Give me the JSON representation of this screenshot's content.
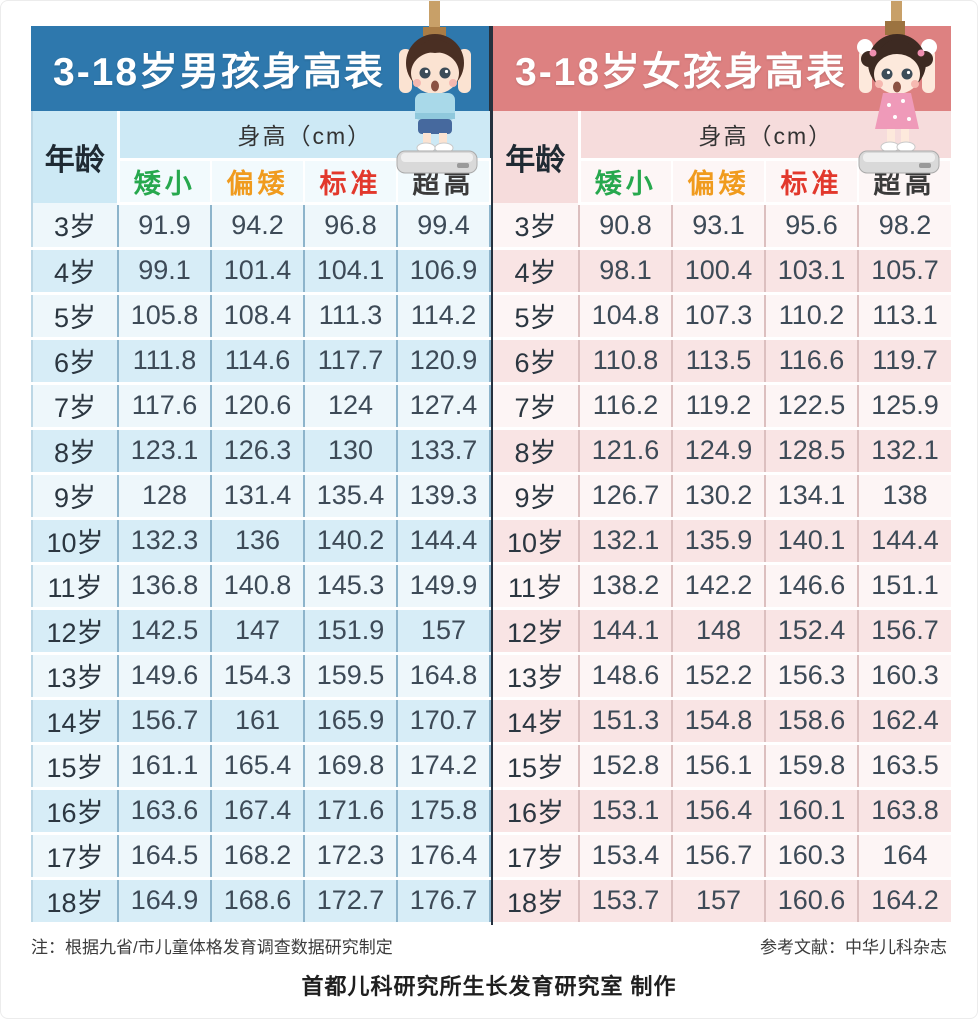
{
  "poster": {
    "note_left": "注：根据九省/市儿童体格发育调查数据研究制定",
    "note_right": "参考文献：中华儿科杂志",
    "credit": "首都儿科研究所生长发育研究室 制作"
  },
  "colors": {
    "boys_header_bg": "#2e78ad",
    "boys_row_light": "#eef7fb",
    "boys_row_tint": "#d7edf7",
    "girls_header_bg": "#dd8181",
    "girls_row_light": "#fdf5f5",
    "girls_row_tint": "#f9e4e4",
    "divider_dark": "#25313e",
    "col_short_green": "#27a84e",
    "col_below_orange": "#f09b1e",
    "col_standard_red": "#e2382c",
    "col_tall_dark": "#3a3a3a"
  },
  "chart_data": [
    {
      "type": "table",
      "title": "3-18岁男孩身高表",
      "age_header": "年龄",
      "group_header": "身高（cm）",
      "columns": [
        "矮小",
        "偏矮",
        "标准",
        "超高"
      ],
      "column_colors": [
        "#27a84e",
        "#f09b1e",
        "#e2382c",
        "#3a3a3a"
      ],
      "rows": [
        {
          "age": "3岁",
          "values": [
            "91.9",
            "94.2",
            "96.8",
            "99.4"
          ]
        },
        {
          "age": "4岁",
          "values": [
            "99.1",
            "101.4",
            "104.1",
            "106.9"
          ]
        },
        {
          "age": "5岁",
          "values": [
            "105.8",
            "108.4",
            "111.3",
            "114.2"
          ]
        },
        {
          "age": "6岁",
          "values": [
            "111.8",
            "114.6",
            "117.7",
            "120.9"
          ]
        },
        {
          "age": "7岁",
          "values": [
            "117.6",
            "120.6",
            "124",
            "127.4"
          ]
        },
        {
          "age": "8岁",
          "values": [
            "123.1",
            "126.3",
            "130",
            "133.7"
          ]
        },
        {
          "age": "9岁",
          "values": [
            "128",
            "131.4",
            "135.4",
            "139.3"
          ]
        },
        {
          "age": "10岁",
          "values": [
            "132.3",
            "136",
            "140.2",
            "144.4"
          ]
        },
        {
          "age": "11岁",
          "values": [
            "136.8",
            "140.8",
            "145.3",
            "149.9"
          ]
        },
        {
          "age": "12岁",
          "values": [
            "142.5",
            "147",
            "151.9",
            "157"
          ]
        },
        {
          "age": "13岁",
          "values": [
            "149.6",
            "154.3",
            "159.5",
            "164.8"
          ]
        },
        {
          "age": "14岁",
          "values": [
            "156.7",
            "161",
            "165.9",
            "170.7"
          ]
        },
        {
          "age": "15岁",
          "values": [
            "161.1",
            "165.4",
            "169.8",
            "174.2"
          ]
        },
        {
          "age": "16岁",
          "values": [
            "163.6",
            "167.4",
            "171.6",
            "175.8"
          ]
        },
        {
          "age": "17岁",
          "values": [
            "164.5",
            "168.2",
            "172.3",
            "176.4"
          ]
        },
        {
          "age": "18岁",
          "values": [
            "164.9",
            "168.6",
            "172.7",
            "176.7"
          ]
        }
      ]
    },
    {
      "type": "table",
      "title": "3-18岁女孩身高表",
      "age_header": "年龄",
      "group_header": "身高（cm）",
      "columns": [
        "矮小",
        "偏矮",
        "标准",
        "超高"
      ],
      "column_colors": [
        "#27a84e",
        "#f09b1e",
        "#e2382c",
        "#3a3a3a"
      ],
      "rows": [
        {
          "age": "3岁",
          "values": [
            "90.8",
            "93.1",
            "95.6",
            "98.2"
          ]
        },
        {
          "age": "4岁",
          "values": [
            "98.1",
            "100.4",
            "103.1",
            "105.7"
          ]
        },
        {
          "age": "5岁",
          "values": [
            "104.8",
            "107.3",
            "110.2",
            "113.1"
          ]
        },
        {
          "age": "6岁",
          "values": [
            "110.8",
            "113.5",
            "116.6",
            "119.7"
          ]
        },
        {
          "age": "7岁",
          "values": [
            "116.2",
            "119.2",
            "122.5",
            "125.9"
          ]
        },
        {
          "age": "8岁",
          "values": [
            "121.6",
            "124.9",
            "128.5",
            "132.1"
          ]
        },
        {
          "age": "9岁",
          "values": [
            "126.7",
            "130.2",
            "134.1",
            "138"
          ]
        },
        {
          "age": "10岁",
          "values": [
            "132.1",
            "135.9",
            "140.1",
            "144.4"
          ]
        },
        {
          "age": "11岁",
          "values": [
            "138.2",
            "142.2",
            "146.6",
            "151.1"
          ]
        },
        {
          "age": "12岁",
          "values": [
            "144.1",
            "148",
            "152.4",
            "156.7"
          ]
        },
        {
          "age": "13岁",
          "values": [
            "148.6",
            "152.2",
            "156.3",
            "160.3"
          ]
        },
        {
          "age": "14岁",
          "values": [
            "151.3",
            "154.8",
            "158.6",
            "162.4"
          ]
        },
        {
          "age": "15岁",
          "values": [
            "152.8",
            "156.1",
            "159.8",
            "163.5"
          ]
        },
        {
          "age": "16岁",
          "values": [
            "153.1",
            "156.4",
            "160.1",
            "163.8"
          ]
        },
        {
          "age": "17岁",
          "values": [
            "153.4",
            "156.7",
            "160.3",
            "164"
          ]
        },
        {
          "age": "18岁",
          "values": [
            "153.7",
            "157",
            "160.6",
            "164.2"
          ]
        }
      ]
    }
  ]
}
